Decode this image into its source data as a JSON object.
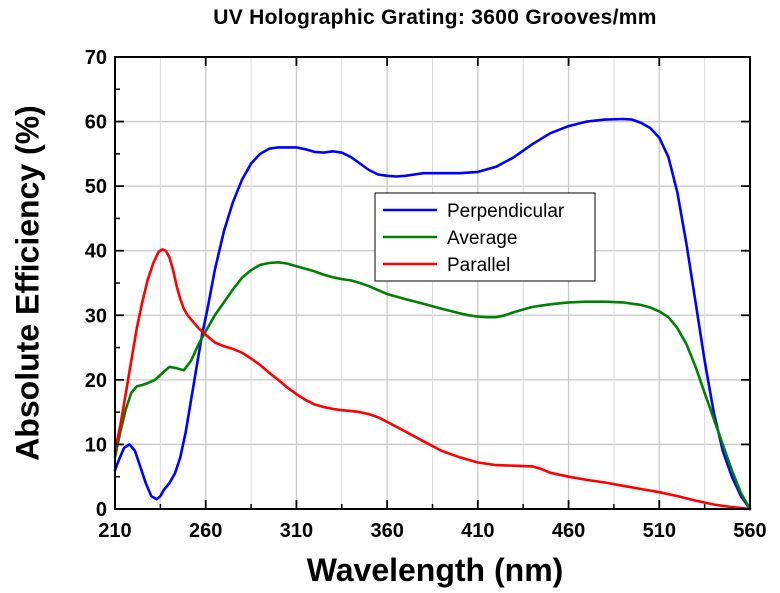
{
  "chart_data": {
    "type": "line",
    "title": "UV Holographic Grating: 3600 Grooves/mm",
    "xlabel": "Wavelength (nm)",
    "ylabel": "Absolute Efficiency (%)",
    "xlim": [
      210,
      560
    ],
    "ylim": [
      0,
      70
    ],
    "x_ticks": [
      "210",
      "260",
      "310",
      "360",
      "410",
      "460",
      "510",
      "560"
    ],
    "y_ticks": [
      "0",
      "10",
      "20",
      "30",
      "40",
      "50",
      "60",
      "70"
    ],
    "grid": true,
    "legend_position": "center",
    "series": [
      {
        "name": "Perpendicular",
        "color": "#0000ff",
        "x": [
          210,
          212,
          215,
          218,
          221,
          224,
          227,
          230,
          233,
          235,
          237,
          240,
          243,
          246,
          249,
          252,
          255,
          258,
          261,
          265,
          270,
          275,
          280,
          285,
          290,
          295,
          300,
          305,
          310,
          315,
          320,
          325,
          330,
          335,
          340,
          345,
          350,
          355,
          360,
          365,
          370,
          375,
          380,
          390,
          400,
          410,
          420,
          430,
          440,
          450,
          460,
          470,
          480,
          490,
          495,
          500,
          505,
          510,
          515,
          520,
          525,
          530,
          535,
          540,
          545,
          550,
          555,
          560
        ],
        "y": [
          6,
          7.5,
          9.5,
          10,
          9,
          6.5,
          4,
          2,
          1.5,
          2,
          3,
          4,
          5.5,
          8,
          12,
          17,
          22,
          27,
          31,
          37,
          43,
          47.5,
          51,
          53.5,
          55,
          55.8,
          56,
          56,
          56,
          55.7,
          55.3,
          55.2,
          55.4,
          55.2,
          54.5,
          53.5,
          52.5,
          51.8,
          51.6,
          51.5,
          51.6,
          51.8,
          52,
          52,
          52,
          52.2,
          53,
          54.5,
          56.5,
          58.2,
          59.3,
          60,
          60.3,
          60.4,
          60.3,
          59.8,
          59,
          57.5,
          54.5,
          49,
          41,
          32,
          23,
          15,
          9,
          5,
          2,
          0
        ]
      },
      {
        "name": "Average",
        "color": "#008000",
        "x": [
          210,
          213,
          216,
          219,
          222,
          225,
          228,
          232,
          236,
          240,
          244,
          248,
          252,
          256,
          260,
          265,
          270,
          275,
          280,
          285,
          290,
          295,
          300,
          305,
          310,
          315,
          320,
          325,
          330,
          335,
          340,
          345,
          350,
          360,
          370,
          380,
          390,
          400,
          405,
          410,
          415,
          420,
          425,
          430,
          440,
          450,
          460,
          470,
          480,
          490,
          500,
          505,
          510,
          515,
          520,
          525,
          530,
          535,
          540,
          545,
          550,
          555,
          560
        ],
        "y": [
          8,
          12,
          15.5,
          18,
          19,
          19.2,
          19.5,
          20,
          21,
          22,
          21.8,
          21.5,
          23,
          25.5,
          27.5,
          30,
          32,
          34,
          35.8,
          37,
          37.8,
          38.1,
          38.2,
          38.0,
          37.6,
          37.2,
          36.8,
          36.3,
          35.9,
          35.6,
          35.4,
          35.0,
          34.5,
          33.3,
          32.5,
          31.8,
          31.0,
          30.3,
          30.0,
          29.8,
          29.7,
          29.7,
          30.0,
          30.5,
          31.3,
          31.7,
          32.0,
          32.1,
          32.1,
          32.0,
          31.6,
          31.2,
          30.6,
          29.7,
          28.0,
          25.5,
          22,
          18,
          14,
          10,
          6,
          2.5,
          0
        ]
      },
      {
        "name": "Parallel",
        "color": "#ff0000",
        "x": [
          210,
          213,
          216,
          219,
          222,
          225,
          228,
          231,
          234,
          236,
          238,
          240,
          242,
          244,
          246,
          248,
          250,
          253,
          256,
          260,
          265,
          270,
          275,
          280,
          285,
          290,
          295,
          300,
          305,
          310,
          315,
          320,
          325,
          330,
          335,
          340,
          345,
          350,
          355,
          360,
          370,
          380,
          390,
          400,
          410,
          420,
          430,
          440,
          445,
          450,
          460,
          470,
          480,
          490,
          500,
          510,
          520,
          530,
          540,
          550,
          560
        ],
        "y": [
          9,
          13,
          18,
          23,
          28,
          32,
          35.5,
          38,
          39.8,
          40.2,
          40,
          39,
          37,
          34.5,
          32.5,
          31,
          30,
          29,
          28,
          27,
          25.8,
          25.2,
          24.8,
          24.2,
          23.3,
          22.3,
          21.1,
          20,
          18.8,
          17.8,
          16.9,
          16.2,
          15.8,
          15.5,
          15.3,
          15.2,
          15.0,
          14.7,
          14.2,
          13.5,
          12,
          10.5,
          9,
          8,
          7.2,
          6.8,
          6.7,
          6.6,
          6.2,
          5.6,
          5,
          4.5,
          4.1,
          3.6,
          3.1,
          2.6,
          2,
          1.3,
          0.7,
          0.3,
          0
        ]
      }
    ]
  }
}
